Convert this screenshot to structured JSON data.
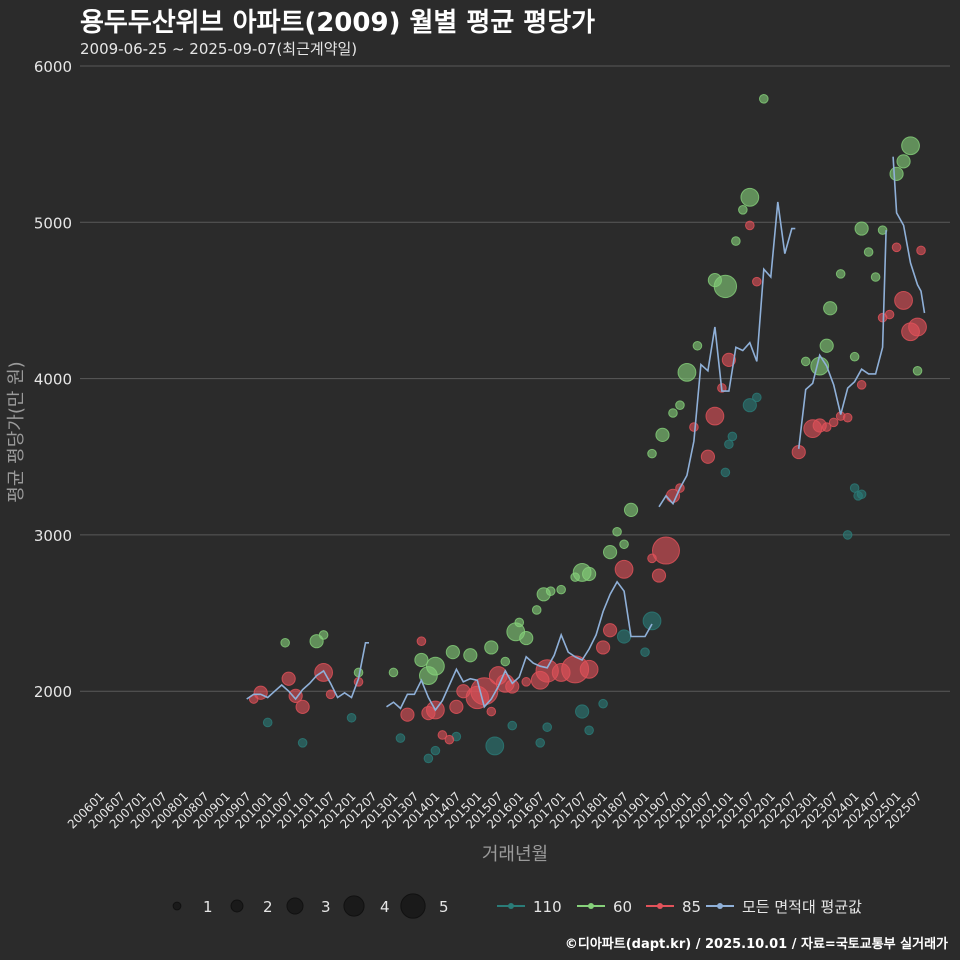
{
  "title": "용두두산위브 아파트(2009) 월별 평균 평당가",
  "subtitle": "2009-06-25 ~ 2025-09-07(최근계약일)",
  "footer": "©디아파트(dapt.kr) / 2025.10.01 / 자료=국토교통부 실거래가",
  "colors": {
    "background": "#2b2b2b",
    "grid": "#5a5a5a",
    "s110": "#2a7c78",
    "s60": "#86d17a",
    "s85": "#e2525a",
    "avg": "#8fb0d8"
  },
  "chart_data": {
    "type": "scatter",
    "xlabel": "거래년월",
    "ylabel": "평균 평당가(만 원)",
    "ylim": [
      1400,
      6000
    ],
    "yticks": [
      2000,
      3000,
      4000,
      5000,
      6000
    ],
    "xticks": [
      "200601",
      "200607",
      "200701",
      "200707",
      "200801",
      "200807",
      "200901",
      "200907",
      "201001",
      "201007",
      "201101",
      "201107",
      "201201",
      "201207",
      "201301",
      "201307",
      "201401",
      "201407",
      "201501",
      "201507",
      "201601",
      "201607",
      "201701",
      "201707",
      "201801",
      "201807",
      "201901",
      "201907",
      "202001",
      "202007",
      "202101",
      "202107",
      "202201",
      "202207",
      "202301",
      "202307",
      "202401",
      "202407",
      "202501",
      "202507"
    ],
    "xrange": [
      "2006-01",
      "2025-12"
    ],
    "grid": true,
    "size_legend": {
      "labels": [
        "1",
        "2",
        "3",
        "4",
        "5"
      ],
      "values": [
        1,
        2,
        3,
        4,
        5
      ]
    },
    "series_legend": [
      "110",
      "60",
      "85",
      "모든 면적대 평균값"
    ],
    "series": [
      {
        "name": "110",
        "points": [
          [
            "2010-01",
            1800,
            1
          ],
          [
            "2010-11",
            1670,
            1
          ],
          [
            "2012-01",
            1830,
            1
          ],
          [
            "2013-03",
            1700,
            1
          ],
          [
            "2013-11",
            1570,
            1
          ],
          [
            "2014-01",
            1620,
            1
          ],
          [
            "2014-07",
            1710,
            1
          ],
          [
            "2015-06",
            1650,
            3
          ],
          [
            "2015-11",
            1780,
            1
          ],
          [
            "2016-07",
            1670,
            1
          ],
          [
            "2016-09",
            1770,
            1
          ],
          [
            "2017-07",
            1870,
            2
          ],
          [
            "2017-09",
            1750,
            1
          ],
          [
            "2018-01",
            1920,
            1
          ],
          [
            "2018-07",
            2350,
            2
          ],
          [
            "2019-01",
            2250,
            1
          ],
          [
            "2019-03",
            2450,
            3
          ],
          [
            "2020-12",
            3400,
            1
          ],
          [
            "2021-01",
            3580,
            1
          ],
          [
            "2021-02",
            3630,
            1
          ],
          [
            "2021-07",
            3830,
            2
          ],
          [
            "2021-09",
            3880,
            1
          ],
          [
            "2023-11",
            3000,
            1
          ],
          [
            "2024-01",
            3300,
            1
          ],
          [
            "2024-02",
            3250,
            1
          ],
          [
            "2024-03",
            3260,
            1
          ]
        ]
      },
      {
        "name": "60",
        "points": [
          [
            "2010-06",
            2310,
            1
          ],
          [
            "2011-03",
            2320,
            2
          ],
          [
            "2011-05",
            2360,
            1
          ],
          [
            "2012-03",
            2120,
            1
          ],
          [
            "2013-01",
            2120,
            1
          ],
          [
            "2013-09",
            2200,
            2
          ],
          [
            "2013-11",
            2100,
            3
          ],
          [
            "2014-01",
            2160,
            3
          ],
          [
            "2014-06",
            2250,
            2
          ],
          [
            "2014-11",
            2230,
            2
          ],
          [
            "2015-05",
            2280,
            2
          ],
          [
            "2015-09",
            2190,
            1
          ],
          [
            "2015-12",
            2380,
            3
          ],
          [
            "2016-01",
            2440,
            1
          ],
          [
            "2016-03",
            2340,
            2
          ],
          [
            "2016-06",
            2520,
            1
          ],
          [
            "2016-08",
            2620,
            2
          ],
          [
            "2016-10",
            2640,
            1
          ],
          [
            "2017-01",
            2650,
            1
          ],
          [
            "2017-05",
            2730,
            1
          ],
          [
            "2017-07",
            2760,
            3
          ],
          [
            "2017-09",
            2750,
            2
          ],
          [
            "2018-03",
            2890,
            2
          ],
          [
            "2018-05",
            3020,
            1
          ],
          [
            "2018-07",
            2940,
            1
          ],
          [
            "2018-09",
            3160,
            2
          ],
          [
            "2019-03",
            3520,
            1
          ],
          [
            "2019-06",
            3640,
            2
          ],
          [
            "2019-09",
            3780,
            1
          ],
          [
            "2019-11",
            3830,
            1
          ],
          [
            "2020-01",
            4040,
            3
          ],
          [
            "2020-04",
            4210,
            1
          ],
          [
            "2020-09",
            4630,
            2
          ],
          [
            "2020-12",
            4590,
            4
          ],
          [
            "2021-03",
            4880,
            1
          ],
          [
            "2021-05",
            5080,
            1
          ],
          [
            "2021-07",
            5160,
            3
          ],
          [
            "2021-11",
            5790,
            1
          ],
          [
            "2022-11",
            4110,
            1
          ],
          [
            "2023-03",
            4080,
            3
          ],
          [
            "2023-05",
            4210,
            2
          ],
          [
            "2023-06",
            4450,
            2
          ],
          [
            "2023-09",
            4670,
            1
          ],
          [
            "2024-01",
            4140,
            1
          ],
          [
            "2024-03",
            4960,
            2
          ],
          [
            "2024-05",
            4810,
            1
          ],
          [
            "2024-07",
            4650,
            1
          ],
          [
            "2024-09",
            4950,
            1
          ],
          [
            "2025-01",
            5310,
            2
          ],
          [
            "2025-03",
            5390,
            2
          ],
          [
            "2025-05",
            5490,
            3
          ],
          [
            "2025-07",
            4050,
            1
          ]
        ]
      },
      {
        "name": "85",
        "points": [
          [
            "2009-09",
            1950,
            1
          ],
          [
            "2009-11",
            1990,
            2
          ],
          [
            "2010-07",
            2080,
            2
          ],
          [
            "2010-09",
            1970,
            2
          ],
          [
            "2010-11",
            1900,
            2
          ],
          [
            "2011-05",
            2120,
            3
          ],
          [
            "2011-07",
            1980,
            1
          ],
          [
            "2012-03",
            2060,
            1
          ],
          [
            "2013-05",
            1850,
            2
          ],
          [
            "2013-09",
            2320,
            1
          ],
          [
            "2013-11",
            1860,
            2
          ],
          [
            "2014-01",
            1880,
            3
          ],
          [
            "2014-03",
            1720,
            1
          ],
          [
            "2014-05",
            1690,
            1
          ],
          [
            "2014-07",
            1900,
            2
          ],
          [
            "2014-09",
            2000,
            2
          ],
          [
            "2015-01",
            1960,
            4
          ],
          [
            "2015-03",
            2000,
            5
          ],
          [
            "2015-05",
            1870,
            1
          ],
          [
            "2015-07",
            2100,
            3
          ],
          [
            "2015-09",
            2050,
            3
          ],
          [
            "2015-11",
            2030,
            2
          ],
          [
            "2016-03",
            2060,
            1
          ],
          [
            "2016-07",
            2070,
            3
          ],
          [
            "2016-09",
            2130,
            4
          ],
          [
            "2017-01",
            2120,
            3
          ],
          [
            "2017-05",
            2140,
            5
          ],
          [
            "2017-09",
            2140,
            3
          ],
          [
            "2018-01",
            2280,
            2
          ],
          [
            "2018-03",
            2390,
            2
          ],
          [
            "2018-07",
            2780,
            3
          ],
          [
            "2019-03",
            2850,
            1
          ],
          [
            "2019-05",
            2740,
            2
          ],
          [
            "2019-07",
            2900,
            5
          ],
          [
            "2019-09",
            3250,
            2
          ],
          [
            "2019-11",
            3300,
            1
          ],
          [
            "2020-03",
            3690,
            1
          ],
          [
            "2020-07",
            3500,
            2
          ],
          [
            "2020-09",
            3760,
            3
          ],
          [
            "2020-11",
            3940,
            1
          ],
          [
            "2021-01",
            4120,
            2
          ],
          [
            "2021-07",
            4980,
            1
          ],
          [
            "2021-09",
            4620,
            1
          ],
          [
            "2022-09",
            3530,
            2
          ],
          [
            "2023-01",
            3680,
            3
          ],
          [
            "2023-03",
            3700,
            2
          ],
          [
            "2023-05",
            3690,
            1
          ],
          [
            "2023-07",
            3720,
            1
          ],
          [
            "2023-09",
            3760,
            1
          ],
          [
            "2023-11",
            3750,
            1
          ],
          [
            "2024-03",
            3960,
            1
          ],
          [
            "2024-09",
            4390,
            1
          ],
          [
            "2024-11",
            4410,
            1
          ],
          [
            "2025-01",
            4840,
            1
          ],
          [
            "2025-03",
            4500,
            3
          ],
          [
            "2025-05",
            4300,
            3
          ],
          [
            "2025-07",
            4330,
            3
          ],
          [
            "2025-08",
            4820,
            1
          ]
        ]
      }
    ],
    "avg_line": [
      [
        [
          "2009-07",
          1950
        ],
        [
          "2009-09",
          1980
        ],
        [
          "2009-11",
          1980
        ],
        [
          "2010-01",
          1960
        ],
        [
          "2010-03",
          2000
        ],
        [
          "2010-05",
          2040
        ],
        [
          "2010-07",
          2000
        ],
        [
          "2010-09",
          1950
        ],
        [
          "2010-11",
          2010
        ],
        [
          "2011-01",
          2050
        ],
        [
          "2011-03",
          2100
        ],
        [
          "2011-05",
          2130
        ],
        [
          "2011-07",
          2050
        ],
        [
          "2011-09",
          1960
        ],
        [
          "2011-11",
          1990
        ],
        [
          "2012-01",
          1960
        ],
        [
          "2012-03",
          2080
        ],
        [
          "2012-05",
          2310
        ],
        [
          "2012-06",
          2310
        ]
      ],
      [
        [
          "2012-11",
          1900
        ],
        [
          "2013-01",
          1930
        ],
        [
          "2013-03",
          1890
        ],
        [
          "2013-05",
          1980
        ],
        [
          "2013-07",
          1980
        ],
        [
          "2013-09",
          2070
        ],
        [
          "2013-11",
          1960
        ],
        [
          "2014-01",
          1880
        ],
        [
          "2014-03",
          1940
        ],
        [
          "2014-05",
          2040
        ],
        [
          "2014-07",
          2140
        ],
        [
          "2014-09",
          2060
        ],
        [
          "2014-11",
          2080
        ],
        [
          "2015-01",
          2070
        ],
        [
          "2015-03",
          1900
        ],
        [
          "2015-05",
          1950
        ],
        [
          "2015-07",
          2030
        ],
        [
          "2015-09",
          2130
        ],
        [
          "2015-11",
          2050
        ],
        [
          "2016-01",
          2090
        ],
        [
          "2016-03",
          2220
        ],
        [
          "2016-05",
          2180
        ],
        [
          "2016-07",
          2160
        ],
        [
          "2016-09",
          2150
        ],
        [
          "2016-11",
          2230
        ],
        [
          "2017-01",
          2360
        ],
        [
          "2017-03",
          2250
        ],
        [
          "2017-05",
          2220
        ],
        [
          "2017-07",
          2200
        ],
        [
          "2017-09",
          2270
        ],
        [
          "2017-11",
          2360
        ],
        [
          "2018-01",
          2510
        ],
        [
          "2018-03",
          2620
        ],
        [
          "2018-05",
          2700
        ],
        [
          "2018-07",
          2640
        ],
        [
          "2018-09",
          2350
        ],
        [
          "2018-11",
          2350
        ],
        [
          "2019-01",
          2350
        ],
        [
          "2019-03",
          2430
        ]
      ],
      [
        [
          "2019-05",
          3180
        ],
        [
          "2019-07",
          3250
        ],
        [
          "2019-09",
          3200
        ],
        [
          "2019-11",
          3300
        ],
        [
          "2020-01",
          3380
        ],
        [
          "2020-03",
          3600
        ],
        [
          "2020-05",
          4090
        ],
        [
          "2020-07",
          4050
        ],
        [
          "2020-09",
          4330
        ],
        [
          "2020-11",
          3920
        ],
        [
          "2021-01",
          3920
        ],
        [
          "2021-03",
          4200
        ],
        [
          "2021-05",
          4180
        ],
        [
          "2021-07",
          4230
        ],
        [
          "2021-09",
          4110
        ],
        [
          "2021-11",
          4700
        ],
        [
          "2022-01",
          4650
        ],
        [
          "2022-03",
          5130
        ],
        [
          "2022-05",
          4800
        ],
        [
          "2022-07",
          4960
        ],
        [
          "2022-08",
          4960
        ]
      ],
      [
        [
          "2022-09",
          3550
        ],
        [
          "2022-11",
          3930
        ],
        [
          "2023-01",
          3970
        ],
        [
          "2023-03",
          4150
        ],
        [
          "2023-05",
          4080
        ],
        [
          "2023-07",
          3960
        ],
        [
          "2023-09",
          3770
        ],
        [
          "2023-11",
          3940
        ],
        [
          "2024-01",
          3980
        ],
        [
          "2024-03",
          4060
        ],
        [
          "2024-05",
          4030
        ],
        [
          "2024-07",
          4030
        ],
        [
          "2024-09",
          4200
        ],
        [
          "2024-10",
          4950
        ]
      ],
      [
        [
          "2024-12",
          5420
        ],
        [
          "2025-01",
          5060
        ],
        [
          "2025-03",
          4980
        ],
        [
          "2025-05",
          4740
        ],
        [
          "2025-07",
          4600
        ],
        [
          "2025-08",
          4560
        ],
        [
          "2025-09",
          4420
        ]
      ]
    ]
  }
}
